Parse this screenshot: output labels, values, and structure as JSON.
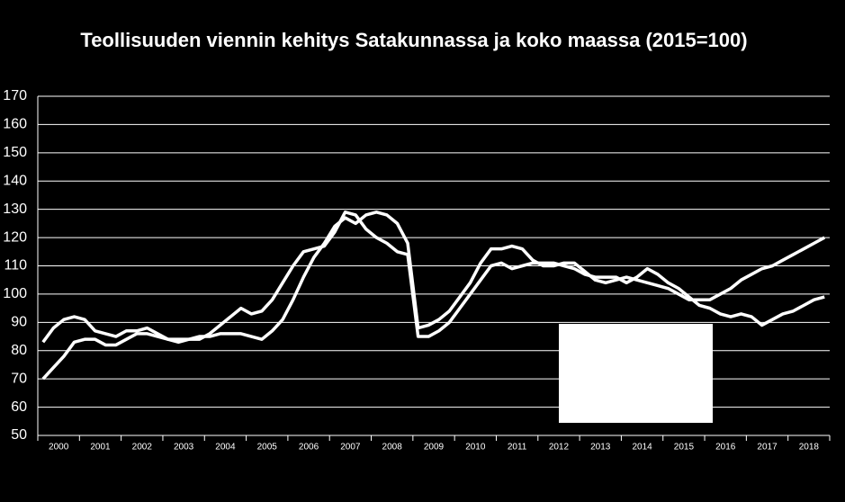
{
  "chart_data": {
    "type": "line",
    "title": "Teollisuuden viennin kehitys Satakunnassa ja koko maassa (2015=100)",
    "categories": [
      null,
      "2000",
      null,
      null,
      null,
      "2001",
      null,
      null,
      null,
      "2002",
      null,
      null,
      null,
      "2003",
      null,
      null,
      null,
      "2004",
      null,
      null,
      null,
      "2005",
      null,
      null,
      null,
      "2006",
      null,
      null,
      null,
      "2007",
      null,
      null,
      null,
      "2008",
      null,
      null,
      null,
      "2009",
      null,
      null,
      null,
      "2010",
      null,
      null,
      null,
      "2011",
      null,
      null,
      null,
      "2012",
      null,
      null,
      null,
      "2013",
      null,
      null,
      null,
      "2014",
      null,
      null,
      null,
      "2015",
      null,
      null,
      null,
      "2016",
      null,
      null,
      null,
      "2017",
      null,
      null,
      null,
      "2018",
      null,
      null
    ],
    "series": [
      {
        "color": "#ffffff",
        "values": [
          83,
          88,
          91,
          92,
          91,
          87,
          86,
          85,
          87,
          87,
          88,
          86,
          84,
          83,
          84,
          84,
          86,
          89,
          92,
          95,
          93,
          94,
          98,
          104,
          110,
          115,
          116,
          117,
          122,
          129,
          128,
          123,
          120,
          118,
          115,
          114,
          85,
          85,
          87,
          90,
          95,
          100,
          105,
          110,
          111,
          109,
          110,
          111,
          111,
          111,
          110,
          109,
          107,
          106,
          106,
          106,
          104,
          106,
          109,
          107,
          104,
          102,
          99,
          96,
          95,
          93,
          92,
          93,
          92,
          89,
          91,
          93,
          94,
          96,
          98,
          99
        ]
      },
      {
        "color": "#ffffff",
        "values": [
          70,
          74,
          78,
          83,
          84,
          84,
          82,
          82,
          84,
          86,
          86,
          85,
          84,
          84,
          84,
          85,
          85,
          86,
          86,
          86,
          85,
          84,
          87,
          91,
          98,
          106,
          113,
          118,
          124,
          127,
          125,
          128,
          129,
          128,
          125,
          118,
          88,
          89,
          91,
          94,
          99,
          104,
          111,
          116,
          116,
          117,
          116,
          112,
          110,
          110,
          111,
          111,
          108,
          105,
          104,
          105,
          106,
          105,
          104,
          103,
          102,
          100,
          98,
          98,
          98,
          100,
          102,
          105,
          107,
          109,
          110,
          112,
          114,
          116,
          118,
          120
        ]
      }
    ],
    "ylim": [
      50,
      170
    ],
    "yticks": [
      50,
      60,
      70,
      80,
      90,
      100,
      110,
      120,
      130,
      140,
      150,
      160,
      170
    ],
    "grid": true
  }
}
